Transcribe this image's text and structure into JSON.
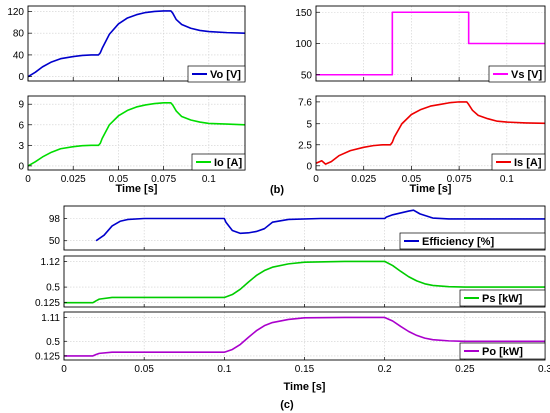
{
  "chart_data": [
    {
      "id": "vo",
      "type": "line",
      "xlabel": "",
      "xlim": [
        0,
        0.12
      ],
      "ylim": [
        -8,
        130
      ],
      "xticks": [
        0,
        0.025,
        0.05,
        0.075,
        0.1
      ],
      "xticklabels": [
        "",
        "",
        "",
        "",
        ""
      ],
      "yticks": [
        0,
        40,
        80,
        120
      ],
      "yticklabels": [
        "0",
        "40",
        "80",
        "120"
      ],
      "grid": true,
      "legend_position": "bottom-right",
      "series": [
        {
          "name": "Vo [V]",
          "color": "#0000cc",
          "x": [
            0,
            0.004,
            0.008,
            0.013,
            0.018,
            0.025,
            0.03,
            0.035,
            0.039,
            0.04,
            0.041,
            0.045,
            0.05,
            0.055,
            0.06,
            0.065,
            0.07,
            0.075,
            0.079,
            0.08,
            0.082,
            0.085,
            0.09,
            0.095,
            0.1,
            0.11,
            0.12
          ],
          "y": [
            0,
            8,
            18,
            27,
            33,
            37,
            39,
            40,
            40,
            44,
            52,
            78,
            97,
            108,
            114,
            118,
            120,
            121,
            121,
            117,
            105,
            96,
            89,
            85,
            83,
            81,
            80
          ]
        }
      ]
    },
    {
      "id": "vs",
      "type": "line",
      "xlabel": "",
      "xlim": [
        0,
        0.12
      ],
      "ylim": [
        40,
        160
      ],
      "xticks": [
        0,
        0.025,
        0.05,
        0.075,
        0.1
      ],
      "xticklabels": [
        "",
        "",
        "",
        "",
        ""
      ],
      "yticks": [
        50,
        100,
        150
      ],
      "yticklabels": [
        "50",
        "100",
        "150"
      ],
      "grid": true,
      "legend_position": "bottom-right",
      "series": [
        {
          "name": "Vs [V]",
          "color": "#ff00ff",
          "x": [
            0,
            0.04,
            0.04,
            0.08,
            0.08,
            0.12
          ],
          "y": [
            50,
            50,
            150,
            150,
            100,
            100
          ]
        }
      ]
    },
    {
      "id": "io",
      "type": "line",
      "xlabel": "Time [s]",
      "xlim": [
        0,
        0.12
      ],
      "ylim": [
        -0.6,
        10.2
      ],
      "xticks": [
        0,
        0.025,
        0.05,
        0.075,
        0.1
      ],
      "xticklabels": [
        "0",
        "0.025",
        "0.05",
        "0.075",
        "0.1"
      ],
      "yticks": [
        0,
        3,
        6,
        9
      ],
      "yticklabels": [
        "0",
        "3",
        "6",
        "9"
      ],
      "grid": true,
      "legend_position": "bottom-right",
      "series": [
        {
          "name": "Io [A]",
          "color": "#00dd00",
          "x": [
            0,
            0.004,
            0.008,
            0.013,
            0.018,
            0.025,
            0.03,
            0.035,
            0.039,
            0.04,
            0.041,
            0.045,
            0.05,
            0.055,
            0.06,
            0.065,
            0.07,
            0.075,
            0.079,
            0.08,
            0.082,
            0.085,
            0.09,
            0.095,
            0.1,
            0.11,
            0.12
          ],
          "y": [
            0,
            0.6,
            1.3,
            2.0,
            2.5,
            2.8,
            2.95,
            3.0,
            3.0,
            3.3,
            4.0,
            6.0,
            7.3,
            8.1,
            8.6,
            8.9,
            9.1,
            9.2,
            9.2,
            8.9,
            8.0,
            7.2,
            6.7,
            6.4,
            6.2,
            6.1,
            6.0
          ]
        }
      ]
    },
    {
      "id": "is",
      "type": "line",
      "xlabel": "Time [s]",
      "xlim": [
        0,
        0.12
      ],
      "ylim": [
        -0.5,
        8.3
      ],
      "xticks": [
        0,
        0.025,
        0.05,
        0.075,
        0.1
      ],
      "xticklabels": [
        "0",
        "0.025",
        "0.05",
        "0.075",
        "0.1"
      ],
      "yticks": [
        0,
        2.5,
        5,
        7.6
      ],
      "yticklabels": [
        "0",
        "2.5",
        "5",
        "7.6"
      ],
      "grid": true,
      "legend_position": "bottom-right",
      "series": [
        {
          "name": "Is [A]",
          "color": "#ee0000",
          "x": [
            0,
            0.003,
            0.005,
            0.008,
            0.012,
            0.018,
            0.025,
            0.03,
            0.035,
            0.039,
            0.04,
            0.041,
            0.045,
            0.05,
            0.055,
            0.06,
            0.065,
            0.07,
            0.075,
            0.079,
            0.08,
            0.082,
            0.085,
            0.09,
            0.095,
            0.1,
            0.11,
            0.12
          ],
          "y": [
            0.3,
            0.6,
            0.2,
            0.5,
            1.2,
            1.8,
            2.2,
            2.4,
            2.5,
            2.5,
            2.8,
            3.4,
            5.0,
            6.1,
            6.7,
            7.1,
            7.3,
            7.5,
            7.6,
            7.6,
            7.3,
            6.6,
            6.0,
            5.6,
            5.3,
            5.2,
            5.1,
            5.05
          ]
        }
      ]
    },
    {
      "id": "eff",
      "type": "line",
      "xlabel": "",
      "xlim": [
        0,
        0.3
      ],
      "ylim": [
        30,
        125
      ],
      "xticks": [
        0,
        0.05,
        0.1,
        0.15,
        0.2,
        0.25,
        0.3
      ],
      "xticklabels": [
        "",
        "",
        "",
        "",
        "",
        "",
        ""
      ],
      "yticks": [
        50,
        98
      ],
      "yticklabels": [
        "50",
        "98"
      ],
      "grid": true,
      "legend_position": "bottom-right",
      "series": [
        {
          "name": "Efficiency [%]",
          "color": "#0000cc",
          "x": [
            0.02,
            0.025,
            0.03,
            0.035,
            0.04,
            0.05,
            0.07,
            0.09,
            0.1,
            0.101,
            0.105,
            0.11,
            0.115,
            0.12,
            0.125,
            0.13,
            0.14,
            0.16,
            0.18,
            0.2,
            0.201,
            0.205,
            0.21,
            0.215,
            0.218,
            0.222,
            0.23,
            0.24,
            0.26,
            0.3
          ],
          "y": [
            50,
            62,
            82,
            92,
            96,
            98,
            98,
            98,
            98,
            90,
            72,
            66,
            67,
            70,
            76,
            90,
            96,
            98,
            98,
            98,
            101,
            106,
            110,
            114,
            116,
            108,
            99,
            97,
            97,
            97
          ]
        }
      ]
    },
    {
      "id": "ps",
      "type": "line",
      "xlabel": "",
      "xlim": [
        0,
        0.3
      ],
      "ylim": [
        0.02,
        1.25
      ],
      "xticks": [
        0,
        0.05,
        0.1,
        0.15,
        0.2,
        0.25,
        0.3
      ],
      "xticklabels": [
        "",
        "",
        "",
        "",
        "",
        "",
        ""
      ],
      "yticks": [
        0.125,
        0.5,
        1.12
      ],
      "yticklabels": [
        "0.125",
        "0.5",
        "1.12"
      ],
      "grid": true,
      "legend_position": "bottom-right",
      "series": [
        {
          "name": "Ps [kW]",
          "color": "#00cc00",
          "x": [
            0,
            0.018,
            0.02,
            0.022,
            0.03,
            0.05,
            0.1,
            0.105,
            0.11,
            0.115,
            0.12,
            0.125,
            0.13,
            0.14,
            0.15,
            0.175,
            0.2,
            0.205,
            0.21,
            0.215,
            0.22,
            0.225,
            0.23,
            0.24,
            0.25,
            0.3
          ],
          "y": [
            0.125,
            0.125,
            0.17,
            0.21,
            0.25,
            0.25,
            0.25,
            0.32,
            0.45,
            0.62,
            0.78,
            0.9,
            0.98,
            1.06,
            1.1,
            1.12,
            1.12,
            1.02,
            0.88,
            0.75,
            0.65,
            0.58,
            0.54,
            0.51,
            0.5,
            0.5
          ]
        }
      ]
    },
    {
      "id": "po",
      "type": "line",
      "xlabel": "Time [s]",
      "xlim": [
        0,
        0.3
      ],
      "ylim": [
        0.02,
        1.25
      ],
      "xticks": [
        0,
        0.05,
        0.1,
        0.15,
        0.2,
        0.25,
        0.3
      ],
      "xticklabels": [
        "0",
        "0.05",
        "0.1",
        "0.15",
        "0.2",
        "0.25",
        "0.3"
      ],
      "yticks": [
        0.125,
        0.5,
        1.11
      ],
      "yticklabels": [
        "0.125",
        "0.5",
        "1.11"
      ],
      "grid": true,
      "legend_position": "bottom-right",
      "series": [
        {
          "name": "Po [kW]",
          "color": "#aa00cc",
          "x": [
            0,
            0.018,
            0.02,
            0.022,
            0.03,
            0.05,
            0.1,
            0.105,
            0.11,
            0.115,
            0.12,
            0.125,
            0.13,
            0.14,
            0.15,
            0.175,
            0.2,
            0.205,
            0.21,
            0.215,
            0.22,
            0.225,
            0.23,
            0.24,
            0.25,
            0.3
          ],
          "y": [
            0.125,
            0.125,
            0.16,
            0.19,
            0.22,
            0.22,
            0.22,
            0.29,
            0.42,
            0.6,
            0.77,
            0.9,
            0.98,
            1.06,
            1.1,
            1.11,
            1.11,
            1.02,
            0.88,
            0.75,
            0.65,
            0.58,
            0.54,
            0.51,
            0.5,
            0.5
          ]
        }
      ]
    }
  ],
  "captions": {
    "b": "(b)",
    "c": "(c)"
  }
}
